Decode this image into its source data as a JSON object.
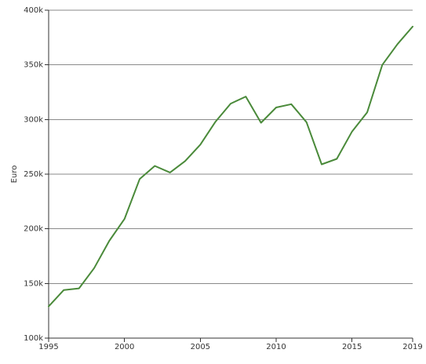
{
  "chart_data": {
    "type": "line",
    "title": "",
    "xlabel": "",
    "ylabel": "Euro",
    "xlim": [
      1995,
      2019
    ],
    "ylim": [
      100000,
      400000
    ],
    "grid": true,
    "colors": {
      "line": "#4a8a3a",
      "grid": "#8a8a8a",
      "axis": "#333333",
      "text": "#333333"
    },
    "x_ticks": [
      1995,
      2000,
      2005,
      2010,
      2015,
      2019
    ],
    "x_tick_labels": [
      "1995",
      "2000",
      "2005",
      "2010",
      "2015",
      "2019"
    ],
    "y_ticks": [
      100000,
      150000,
      200000,
      250000,
      300000,
      350000,
      400000
    ],
    "y_tick_labels": [
      "100k",
      "150k",
      "200k",
      "250k",
      "300k",
      "350k",
      "400k"
    ],
    "series": [
      {
        "x": [
          1995,
          1996,
          1997,
          1998,
          1999,
          2000,
          2001,
          2002,
          2003,
          2004,
          2005,
          2006,
          2007,
          2008,
          2009,
          2010,
          2011,
          2012,
          2013,
          2014,
          2015,
          2016,
          2017,
          2018,
          2019
        ],
        "y": [
          129000,
          144000,
          145500,
          164000,
          189000,
          209000,
          245500,
          257500,
          251500,
          262000,
          277000,
          298000,
          314500,
          321000,
          297000,
          311000,
          314000,
          297500,
          259000,
          264000,
          289000,
          306500,
          350000,
          369000,
          385000
        ]
      }
    ]
  }
}
